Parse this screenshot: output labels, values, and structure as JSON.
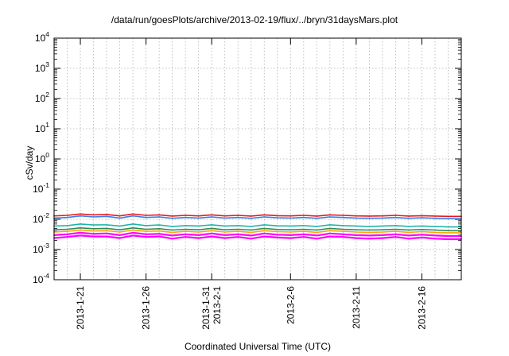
{
  "chart_data": {
    "type": "line",
    "title": "/data/run/goesPlots/archive/2013-02-19/flux/../bryn/31daysMars.plot",
    "xlabel": "Coordinated Universal Time (UTC)",
    "ylabel": "cSv/day",
    "yscale": "log",
    "ylim": [
      0.0001,
      10000
    ],
    "y_ticks": [
      {
        "base": "10",
        "exp": "-4"
      },
      {
        "base": "10",
        "exp": "-3"
      },
      {
        "base": "10",
        "exp": "-2"
      },
      {
        "base": "10",
        "exp": "-1"
      },
      {
        "base": "10",
        "exp": "0"
      },
      {
        "base": "10",
        "exp": "1"
      },
      {
        "base": "10",
        "exp": "2"
      },
      {
        "base": "10",
        "exp": "3"
      },
      {
        "base": "10",
        "exp": "4"
      }
    ],
    "xlim": [
      "2013-01-19",
      "2013-02-19"
    ],
    "x_ticks": [
      {
        "date": "2013-01-21",
        "lines": [
          "2013-1-21"
        ]
      },
      {
        "date": "2013-01-26",
        "lines": [
          "2013-1-26"
        ]
      },
      {
        "date": "2013-01-31",
        "lines": [
          "2013-1-31",
          "2013-2-1"
        ]
      },
      {
        "date": "2013-02-06",
        "lines": [
          "2013-2-6"
        ]
      },
      {
        "date": "2013-02-11",
        "lines": [
          "2013-2-11"
        ]
      },
      {
        "date": "2013-02-16",
        "lines": [
          "2013-2-16"
        ]
      }
    ],
    "grid": true,
    "series": [
      {
        "color": "#e41a1c",
        "values": [
          0.013,
          0.0135,
          0.015,
          0.014,
          0.0145,
          0.013,
          0.015,
          0.0135,
          0.014,
          0.0128,
          0.0135,
          0.013,
          0.014,
          0.013,
          0.0135,
          0.0128,
          0.014,
          0.0132,
          0.013,
          0.0135,
          0.0128,
          0.014,
          0.0135,
          0.013,
          0.0128,
          0.013,
          0.0135,
          0.0128,
          0.0132,
          0.0128,
          0.0125,
          0.0125
        ]
      },
      {
        "color": "#3a7ff0",
        "values": [
          0.011,
          0.0115,
          0.013,
          0.012,
          0.0125,
          0.011,
          0.013,
          0.0115,
          0.012,
          0.0108,
          0.0115,
          0.011,
          0.012,
          0.011,
          0.0115,
          0.0108,
          0.012,
          0.0112,
          0.011,
          0.0115,
          0.0108,
          0.012,
          0.0115,
          0.011,
          0.0108,
          0.011,
          0.0115,
          0.0108,
          0.0112,
          0.0108,
          0.0105,
          0.0105
        ]
      },
      {
        "color": "#20b2aa",
        "values": [
          0.006,
          0.0062,
          0.007,
          0.0065,
          0.0066,
          0.006,
          0.007,
          0.0062,
          0.0065,
          0.0058,
          0.0062,
          0.006,
          0.0066,
          0.006,
          0.0062,
          0.0058,
          0.0066,
          0.0061,
          0.006,
          0.0062,
          0.0058,
          0.0066,
          0.0062,
          0.006,
          0.0058,
          0.006,
          0.0062,
          0.0058,
          0.006,
          0.0058,
          0.0056,
          0.0056
        ]
      },
      {
        "color": "#2e8b57",
        "values": [
          0.0045,
          0.0047,
          0.0052,
          0.0049,
          0.005,
          0.0045,
          0.0052,
          0.0047,
          0.0049,
          0.0044,
          0.0047,
          0.0045,
          0.005,
          0.0045,
          0.0047,
          0.0044,
          0.005,
          0.0046,
          0.0045,
          0.0047,
          0.0044,
          0.005,
          0.0047,
          0.0045,
          0.0044,
          0.0045,
          0.0047,
          0.0044,
          0.0046,
          0.0044,
          0.0042,
          0.0042
        ]
      },
      {
        "color": "#ffa500",
        "values": [
          0.0038,
          0.004,
          0.0044,
          0.0041,
          0.0042,
          0.0038,
          0.0044,
          0.004,
          0.0041,
          0.0037,
          0.004,
          0.0038,
          0.0042,
          0.0038,
          0.004,
          0.0037,
          0.0042,
          0.0039,
          0.0038,
          0.004,
          0.0037,
          0.0042,
          0.004,
          0.0038,
          0.0037,
          0.0038,
          0.004,
          0.0037,
          0.0039,
          0.0037,
          0.0036,
          0.0036
        ]
      },
      {
        "color": "#ff00ff",
        "values": [
          0.003,
          0.0032,
          0.0036,
          0.0033,
          0.0034,
          0.003,
          0.0036,
          0.0032,
          0.0033,
          0.0029,
          0.0032,
          0.003,
          0.0034,
          0.003,
          0.0032,
          0.0029,
          0.0034,
          0.0031,
          0.003,
          0.0032,
          0.0029,
          0.0034,
          0.0032,
          0.003,
          0.0029,
          0.003,
          0.0032,
          0.0029,
          0.0031,
          0.0029,
          0.0028,
          0.0028
        ]
      },
      {
        "color": "#ff00ff",
        "values": [
          0.0024,
          0.0026,
          0.0029,
          0.0027,
          0.0027,
          0.0024,
          0.0029,
          0.0026,
          0.0027,
          0.0023,
          0.0026,
          0.0024,
          0.0027,
          0.0024,
          0.0026,
          0.0023,
          0.0027,
          0.0025,
          0.0024,
          0.0026,
          0.0023,
          0.0027,
          0.0026,
          0.0024,
          0.0023,
          0.0024,
          0.0026,
          0.0023,
          0.0025,
          0.0023,
          0.0022,
          0.0022
        ]
      }
    ]
  }
}
